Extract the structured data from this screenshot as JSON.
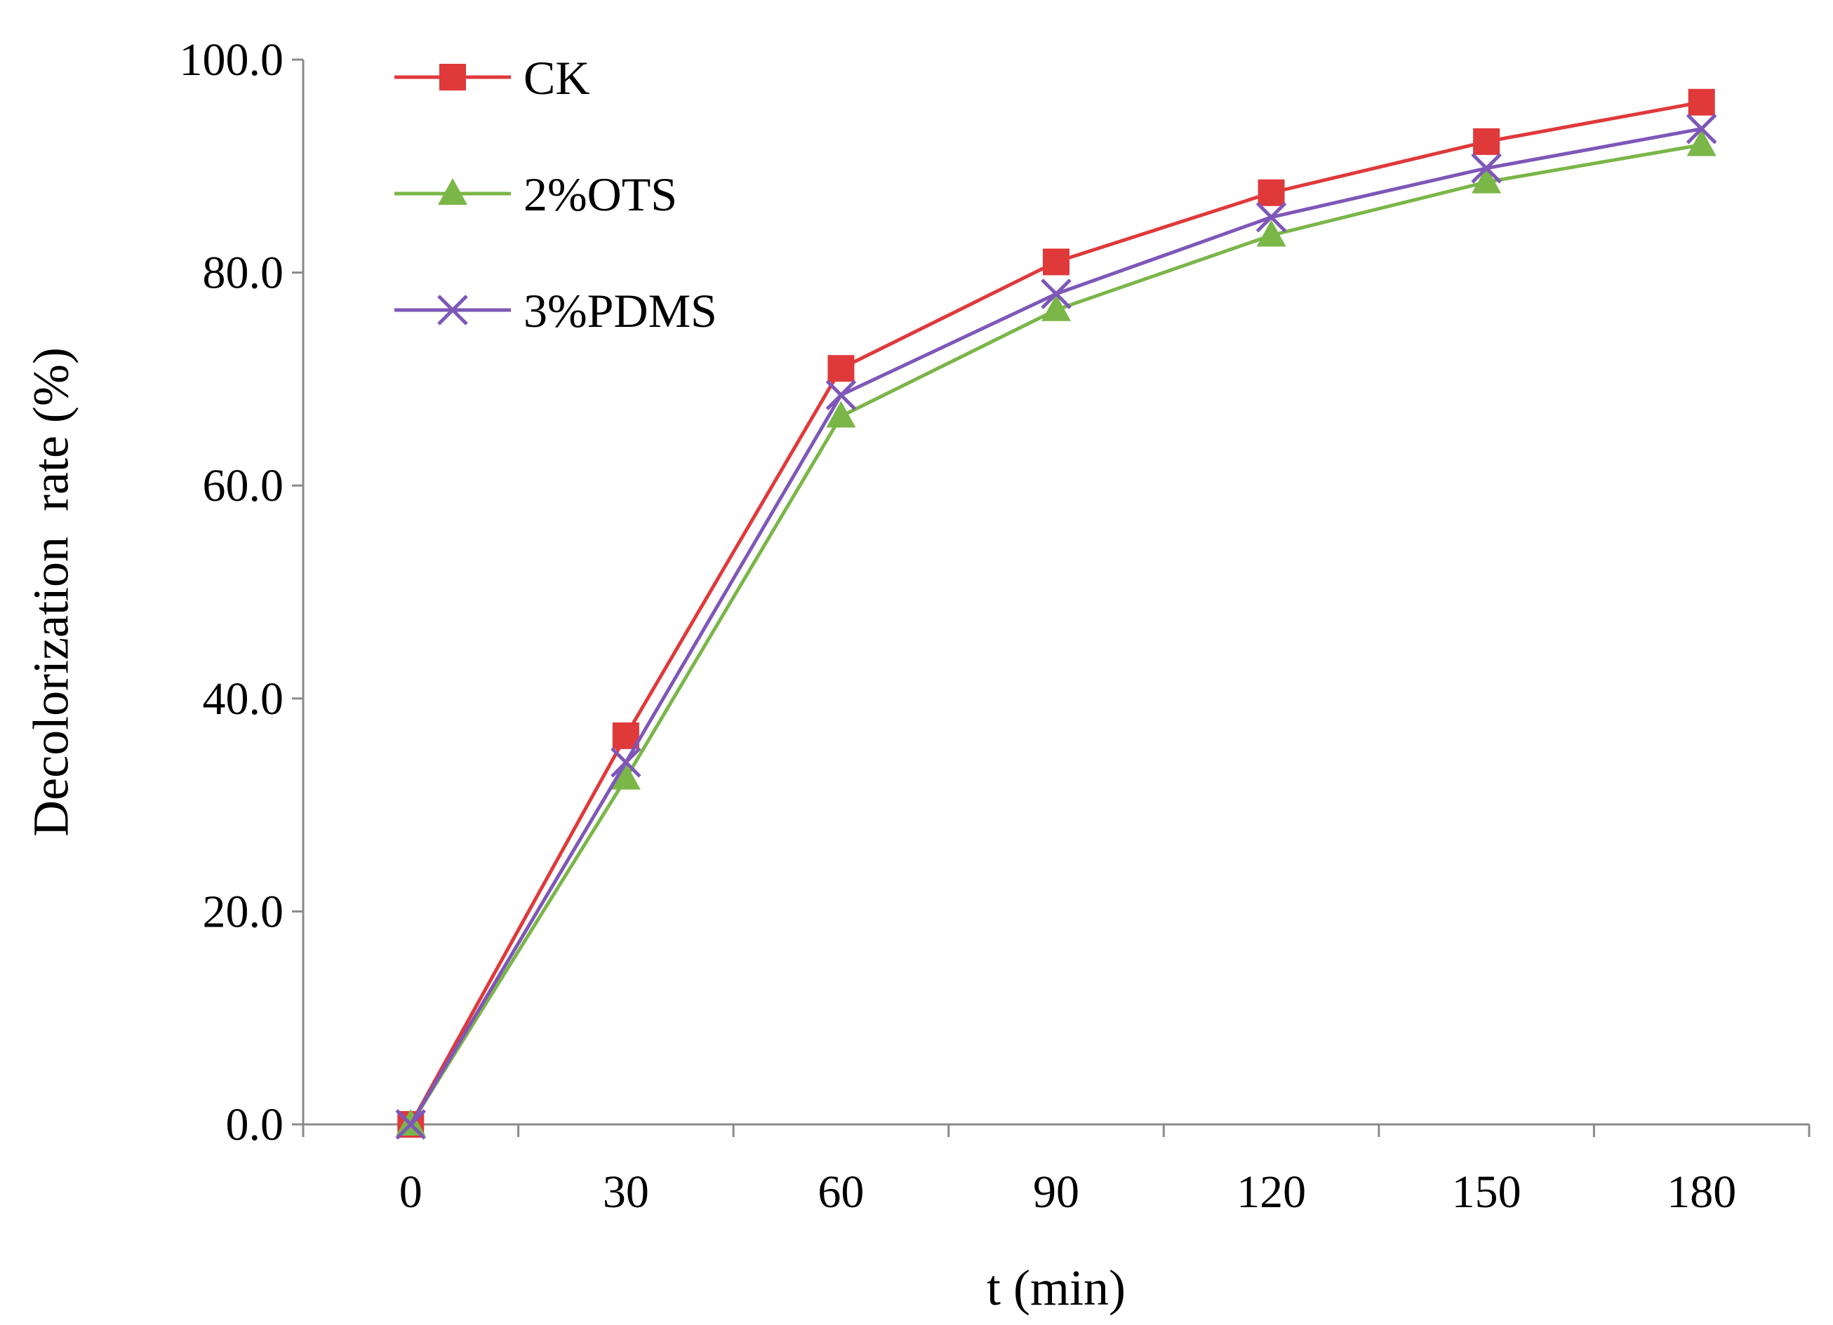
{
  "chart_data": {
    "type": "line",
    "title": "",
    "xlabel": "t (min)",
    "ylabel": "Decolorization  rate (%)",
    "x": [
      0,
      30,
      60,
      90,
      120,
      150,
      180
    ],
    "x_tick_labels": [
      "0",
      "30",
      "60",
      "90",
      "120",
      "150",
      "180"
    ],
    "y_tick_labels": [
      "0.0",
      "20.0",
      "40.0",
      "60.0",
      "80.0",
      "100.0"
    ],
    "ylim": [
      0,
      100
    ],
    "grid": false,
    "legend_position": "top-left",
    "series": [
      {
        "name": "CK",
        "marker": "square",
        "color": "#e0393a",
        "values": [
          0.0,
          36.5,
          71.0,
          81.0,
          87.5,
          92.3,
          96.0
        ]
      },
      {
        "name": "2%OTS",
        "marker": "triangle",
        "color": "#7ab648",
        "values": [
          0.0,
          32.5,
          66.5,
          76.5,
          83.5,
          88.5,
          92.0
        ]
      },
      {
        "name": "3%PDMS",
        "marker": "x",
        "color": "#7e57b8",
        "values": [
          0.0,
          34.0,
          68.5,
          78.0,
          85.2,
          89.8,
          93.5
        ]
      }
    ]
  }
}
